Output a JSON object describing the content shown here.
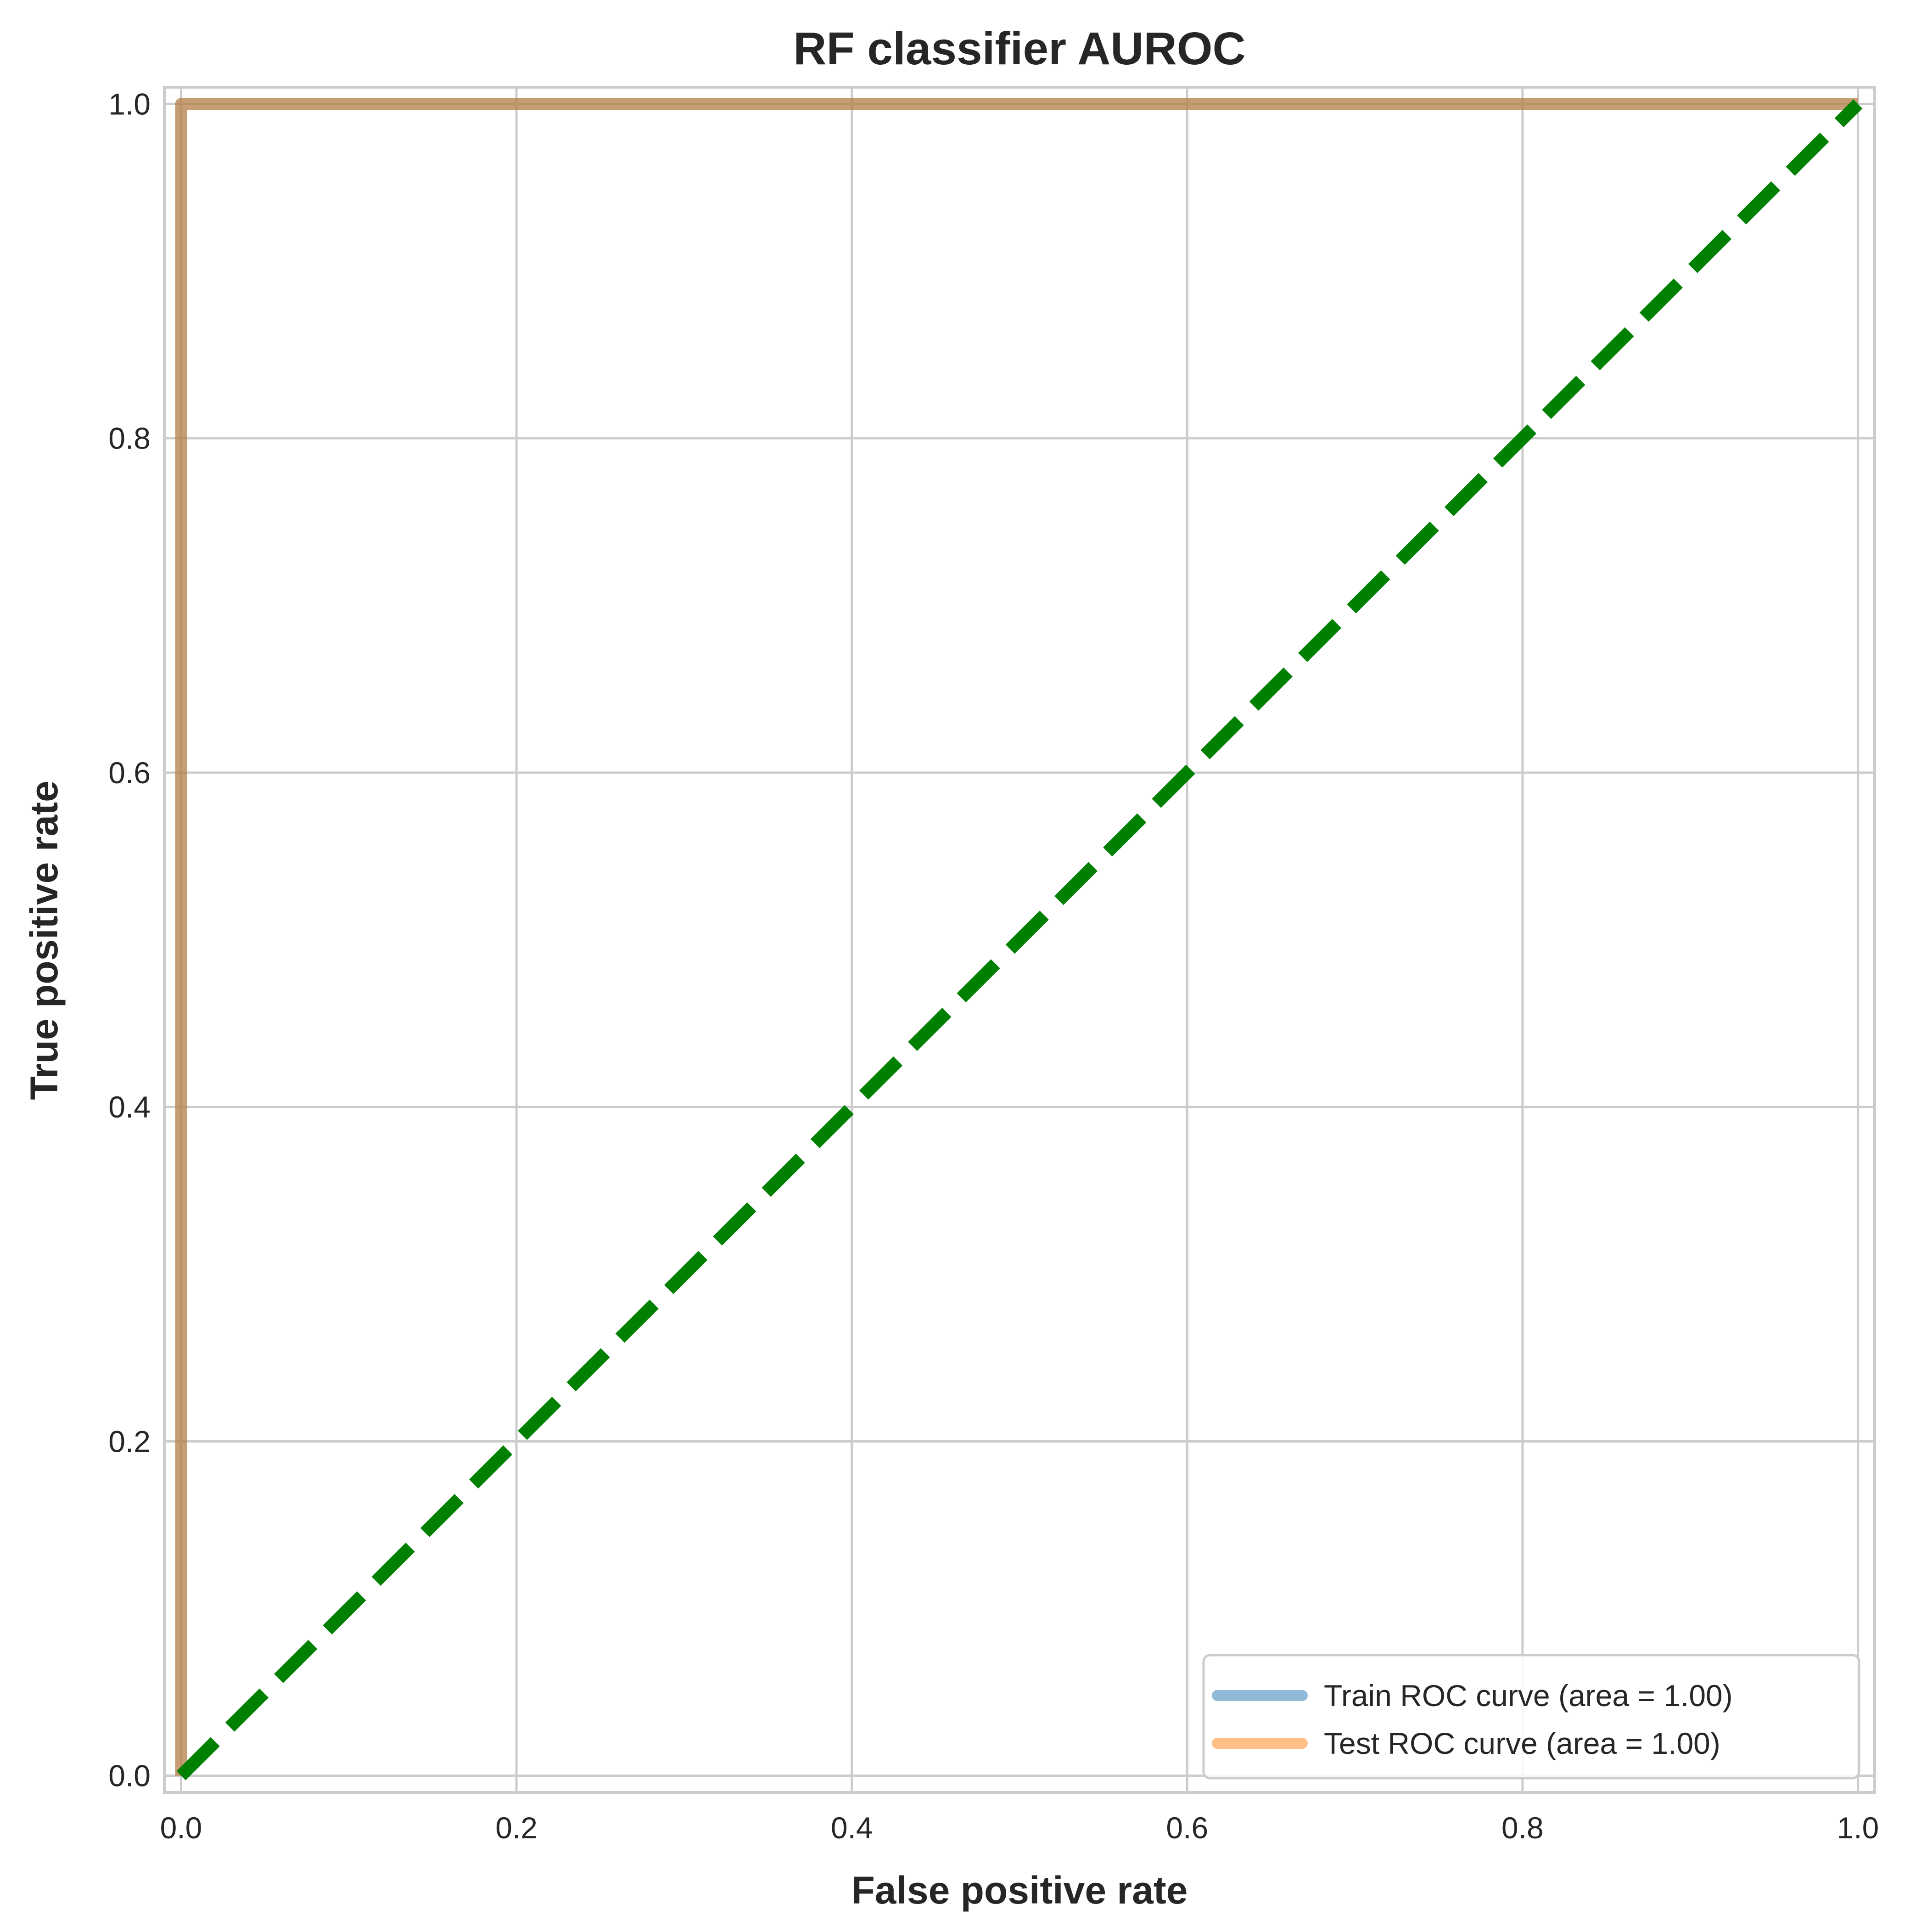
{
  "chart_data": {
    "type": "line",
    "title": "RF classifier AUROC",
    "xlabel": "False positive rate",
    "ylabel": "True positive rate",
    "xlim": [
      -0.01,
      1.01
    ],
    "ylim": [
      -0.01,
      1.01
    ],
    "x_ticks": [
      0.0,
      0.2,
      0.4,
      0.6,
      0.8,
      1.0
    ],
    "x_tick_labels": [
      "0.0",
      "0.2",
      "0.4",
      "0.6",
      "0.8",
      "1.0"
    ],
    "y_ticks": [
      0.0,
      0.2,
      0.4,
      0.6,
      0.8,
      1.0
    ],
    "y_tick_labels": [
      "0.0",
      "0.2",
      "0.4",
      "0.6",
      "0.8",
      "1.0"
    ],
    "grid": true,
    "legend_position": "lower right",
    "series": [
      {
        "name": "Train ROC curve (area = 1.00)",
        "x": [
          0.0,
          0.0,
          1.0
        ],
        "y": [
          0.0,
          1.0,
          1.0
        ],
        "color": "#1f77b4",
        "opacity": 0.5,
        "style": "solid"
      },
      {
        "name": "Test ROC curve (area = 1.00)",
        "x": [
          0.0,
          0.0,
          1.0
        ],
        "y": [
          0.0,
          1.0,
          1.0
        ],
        "color": "#ff7f0e",
        "opacity": 0.5,
        "style": "solid"
      }
    ],
    "reference_line": {
      "x": [
        0.0,
        1.0
      ],
      "y": [
        0.0,
        1.0
      ],
      "color": "#008000",
      "style": "dashed"
    }
  }
}
